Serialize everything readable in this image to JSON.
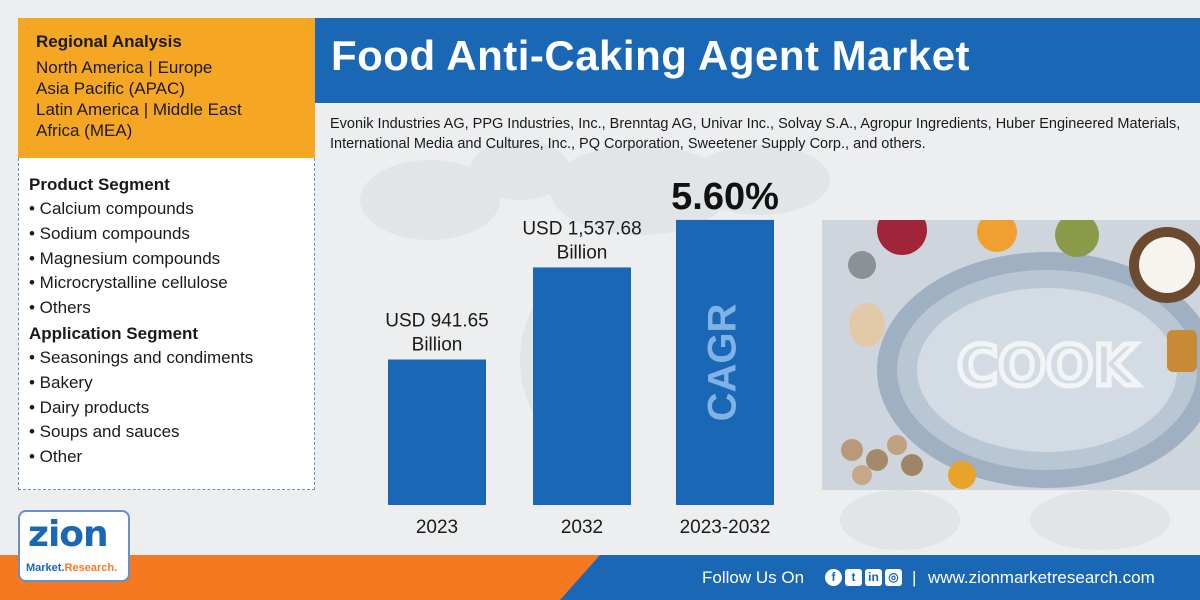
{
  "region": {
    "title": "Regional Analysis",
    "lines": [
      "North America | Europe",
      "Asia Pacific (APAC)",
      "Latin America | Middle East",
      "Africa (MEA)"
    ]
  },
  "segments": {
    "product_title": "Product Segment",
    "product_items": [
      "• Calcium compounds",
      "• Sodium compounds",
      "• Magnesium compounds",
      "• Microcrystalline cellulose",
      "• Others"
    ],
    "application_title": "Application Segment",
    "application_items": [
      "• Seasonings and condiments",
      "• Bakery",
      "• Dairy products",
      "• Soups and sauces",
      "• Other"
    ]
  },
  "header": {
    "title": "Food Anti-Caking Agent Market",
    "companies": "Evonik Industries AG, PPG Industries, Inc., Brenntag AG, Univar Inc., Solvay S.A., Agropur Ingredients, Huber Engineered Materials, International Media and Cultures, Inc., PQ Corporation, Sweetener Supply Corp., and others."
  },
  "chart_data": {
    "type": "bar",
    "categories": [
      "2023",
      "2032",
      "2023-2032"
    ],
    "values": [
      941.65,
      1537.68,
      null
    ],
    "data_labels": [
      [
        "USD 941.65",
        "Billion"
      ],
      [
        "USD 1,537.68",
        "Billion"
      ]
    ],
    "cagr": {
      "value": "5.60%",
      "label": "CAGR"
    },
    "colors": {
      "bar": "#1a67b5",
      "cagr_text": "#7fb2e5"
    }
  },
  "photo": {
    "text": "COOK"
  },
  "footer": {
    "follow": "Follow Us On",
    "divider": "|",
    "website": "www.zionmarketresearch.com",
    "icons": [
      "facebook-icon",
      "twitter-icon",
      "linkedin-icon",
      "instagram-icon"
    ]
  },
  "logo": {
    "name": "zion",
    "sub_left": "Market.",
    "sub_right": "Research."
  }
}
